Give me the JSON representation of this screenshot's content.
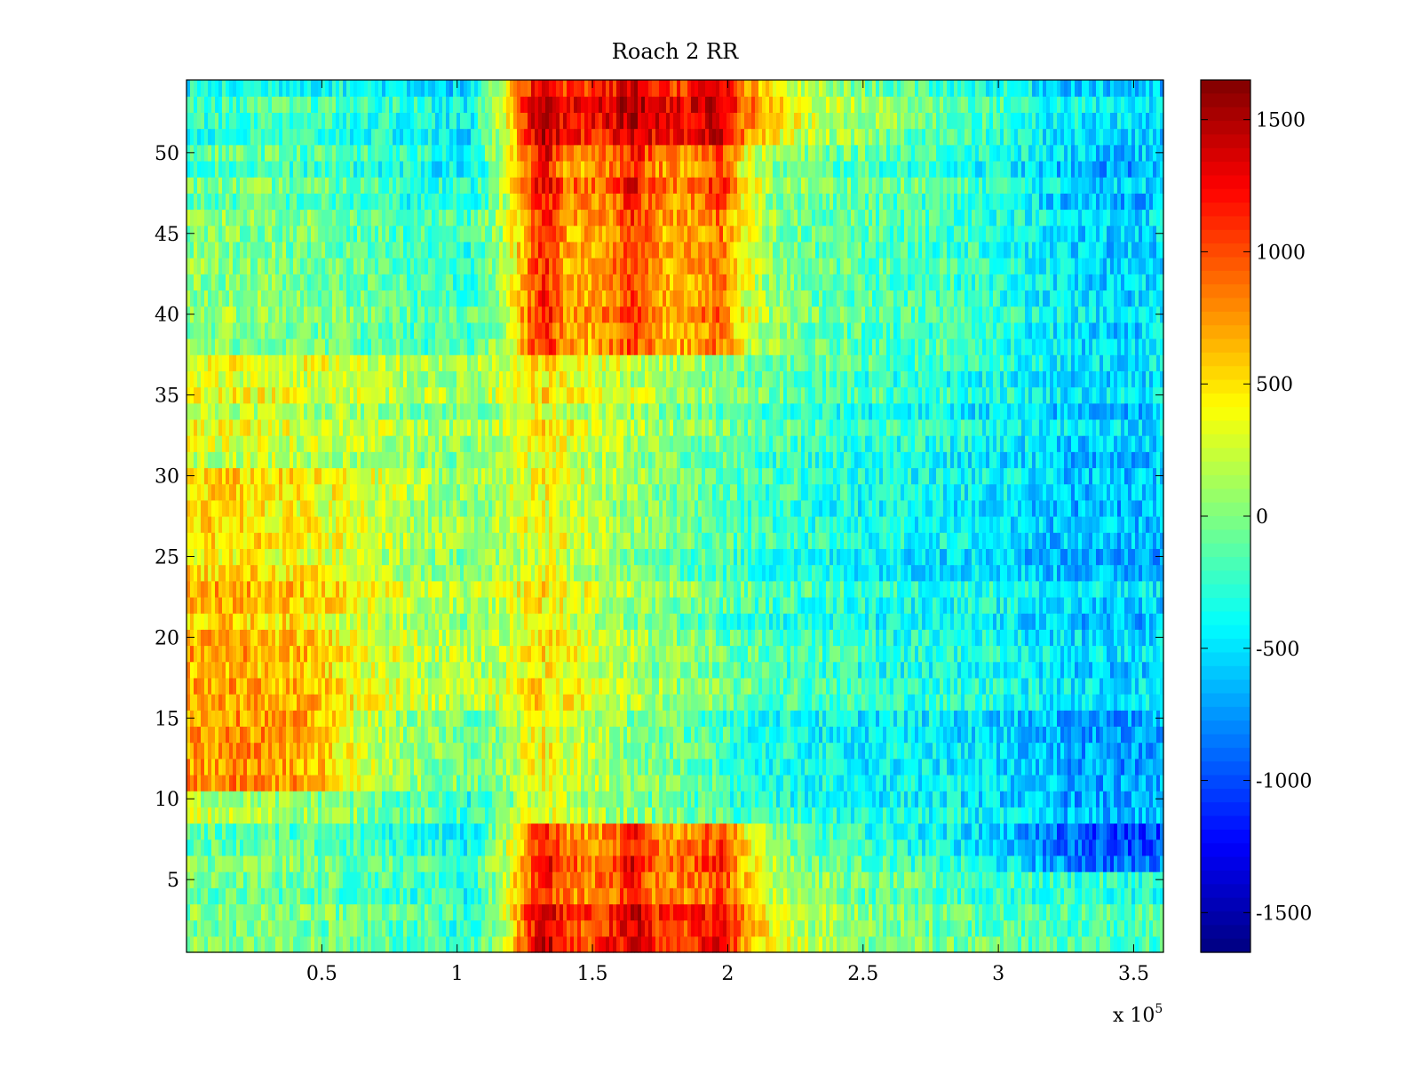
{
  "chart_data": {
    "type": "heatmap",
    "title": "Roach 2 RR",
    "xlabel": "",
    "ylabel": "",
    "x_exponent_label": "x 10",
    "x_exponent": "5",
    "xlim": [
      0,
      361000
    ],
    "ylim": [
      0.5,
      54.5
    ],
    "x_ticks": [
      {
        "value": 50000,
        "label": "0.5"
      },
      {
        "value": 100000,
        "label": "1"
      },
      {
        "value": 150000,
        "label": "1.5"
      },
      {
        "value": 200000,
        "label": "2"
      },
      {
        "value": 250000,
        "label": "2.5"
      },
      {
        "value": 300000,
        "label": "3"
      },
      {
        "value": 350000,
        "label": "3.5"
      }
    ],
    "y_ticks": [
      {
        "value": 5,
        "label": "5"
      },
      {
        "value": 10,
        "label": "10"
      },
      {
        "value": 15,
        "label": "15"
      },
      {
        "value": 20,
        "label": "20"
      },
      {
        "value": 25,
        "label": "25"
      },
      {
        "value": 30,
        "label": "30"
      },
      {
        "value": 35,
        "label": "35"
      },
      {
        "value": 40,
        "label": "40"
      },
      {
        "value": 45,
        "label": "45"
      },
      {
        "value": 50,
        "label": "50"
      }
    ],
    "rows": 54,
    "colormap": "jet",
    "clim": [
      -1650,
      1650
    ],
    "colorbar_ticks": [
      {
        "value": 1500,
        "label": "1500"
      },
      {
        "value": 1000,
        "label": "1000"
      },
      {
        "value": 500,
        "label": "500"
      },
      {
        "value": 0,
        "label": "0"
      },
      {
        "value": -500,
        "label": "-500"
      },
      {
        "value": -1000,
        "label": "-1000"
      },
      {
        "value": -1500,
        "label": "-1500"
      }
    ],
    "x_sample_values": [
      0,
      15000,
      30000,
      45000,
      60000,
      75000,
      90000,
      105000,
      117500,
      125000,
      132500,
      140000,
      150000,
      160000,
      165000,
      172500,
      180000,
      190000,
      197500,
      205000,
      215000,
      230000,
      250000,
      270000,
      290000,
      305000,
      320000,
      335000,
      350000,
      361000
    ],
    "row_band_profiles": [
      {
        "rows": "1-3",
        "values": [
          -50,
          -50,
          -50,
          -50,
          -100,
          -150,
          -200,
          -300,
          200,
          900,
          1500,
          1000,
          1000,
          1200,
          1400,
          1100,
          1000,
          1100,
          1300,
          800,
          400,
          150,
          0,
          -50,
          -100,
          -150,
          -200,
          -200,
          -200,
          -200
        ]
      },
      {
        "rows": "4-5",
        "values": [
          -50,
          -50,
          -50,
          -50,
          -100,
          -150,
          -200,
          -300,
          200,
          800,
          1200,
          850,
          850,
          1000,
          1200,
          900,
          850,
          900,
          1100,
          650,
          300,
          100,
          -50,
          -100,
          -150,
          -200,
          -250,
          -250,
          -250,
          -250
        ]
      },
      {
        "rows": "6-8",
        "values": [
          -50,
          -50,
          -50,
          -100,
          -150,
          -200,
          -250,
          -350,
          200,
          750,
          1300,
          850,
          800,
          1000,
          1250,
          900,
          800,
          900,
          1150,
          600,
          150,
          -100,
          -200,
          -300,
          -400,
          -550,
          -800,
          -950,
          -950,
          -900
        ]
      },
      {
        "rows": "9-10",
        "values": [
          200,
          150,
          100,
          50,
          0,
          -100,
          -200,
          -300,
          -100,
          200,
          300,
          200,
          100,
          0,
          0,
          -50,
          -100,
          -150,
          -200,
          -250,
          -300,
          -350,
          -400,
          -400,
          -450,
          -550,
          -650,
          -700,
          -700,
          -700
        ]
      },
      {
        "rows": "11-15",
        "values": [
          800,
          850,
          850,
          750,
          450,
          200,
          100,
          0,
          150,
          400,
          500,
          350,
          250,
          150,
          100,
          50,
          0,
          -50,
          -100,
          -200,
          -250,
          -300,
          -350,
          -350,
          -400,
          -450,
          -550,
          -650,
          -650,
          -600
        ]
      },
      {
        "rows": "16-24",
        "values": [
          650,
          650,
          600,
          550,
          400,
          250,
          150,
          100,
          200,
          400,
          450,
          350,
          250,
          150,
          100,
          50,
          0,
          -50,
          -100,
          -150,
          -200,
          -250,
          -300,
          -350,
          -350,
          -400,
          -500,
          -550,
          -550,
          -500
        ]
      },
      {
        "rows": "25-30",
        "values": [
          550,
          550,
          500,
          450,
          350,
          250,
          150,
          100,
          200,
          350,
          400,
          350,
          250,
          150,
          100,
          50,
          0,
          -50,
          -100,
          -150,
          -200,
          -250,
          -300,
          -350,
          -400,
          -450,
          -550,
          -600,
          -600,
          -550
        ]
      },
      {
        "rows": "31-37",
        "values": [
          300,
          300,
          300,
          250,
          200,
          150,
          100,
          50,
          200,
          350,
          450,
          350,
          250,
          200,
          150,
          100,
          50,
          0,
          -50,
          -100,
          -150,
          -200,
          -250,
          -300,
          -350,
          -400,
          -500,
          -550,
          -550,
          -500
        ]
      },
      {
        "rows": "38-46",
        "values": [
          0,
          0,
          0,
          -50,
          -100,
          -150,
          -200,
          -250,
          150,
          700,
          1150,
          700,
          650,
          850,
          1050,
          750,
          650,
          750,
          850,
          350,
          50,
          -100,
          -150,
          -200,
          -250,
          -350,
          -450,
          -550,
          -550,
          -500
        ]
      },
      {
        "rows": "47-50",
        "values": [
          -100,
          -100,
          -100,
          -150,
          -200,
          -250,
          -300,
          -400,
          200,
          800,
          1300,
          850,
          800,
          1000,
          1200,
          900,
          800,
          900,
          1100,
          450,
          100,
          -50,
          -100,
          -150,
          -250,
          -350,
          -500,
          -600,
          -600,
          -550
        ]
      },
      {
        "rows": "51-54",
        "values": [
          -300,
          -300,
          -250,
          -250,
          -300,
          -350,
          -400,
          -500,
          300,
          1050,
          1550,
          1150,
          1150,
          1300,
          1500,
          1250,
          1150,
          1250,
          1400,
          900,
          500,
          200,
          50,
          -100,
          -200,
          -300,
          -450,
          -500,
          -550,
          -550
        ]
      }
    ]
  }
}
